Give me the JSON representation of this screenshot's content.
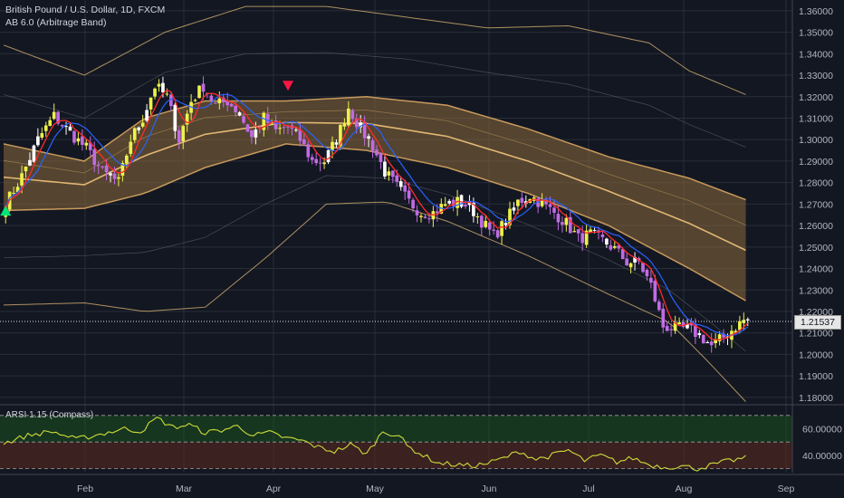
{
  "header": {
    "symbol_line": "British Pound / U.S. Dollar, 1D, FXCM",
    "indicator_line": "AB 6.0 (Arbitrage Band)"
  },
  "oscillator": {
    "title": "ARSI 1.15 (Compass)",
    "levels": [
      "60.00000",
      "40.00000"
    ]
  },
  "last_price_label": "1.21537",
  "colors": {
    "background": "#131722",
    "grid": "#2a2e39",
    "bull": "#eef14a",
    "bear": "#c06be3",
    "neutral": "#ffffff",
    "band_fill": "#8a6a3d",
    "fast_ma": "#ff2b2b",
    "slow_ma": "#2962ff",
    "envelope": "#c9a66b",
    "buy_signal": "#00e676",
    "sell_signal": "#ff1744",
    "osc_line": "#cddc39",
    "osc_upper_zone": "#1b5e20",
    "osc_lower_zone": "#5d2a1f"
  },
  "chart_data": {
    "type": "candlestick",
    "x_ticks": [
      "Feb",
      "Mar",
      "Apr",
      "May",
      "Jun",
      "Jul",
      "Aug",
      "Sep"
    ],
    "y_ticks": [
      "1.36000",
      "1.35000",
      "1.34000",
      "1.33000",
      "1.32000",
      "1.31000",
      "1.30000",
      "1.29000",
      "1.28000",
      "1.27000",
      "1.26000",
      "1.25000",
      "1.24000",
      "1.23000",
      "1.22000",
      "1.21000",
      "1.20000",
      "1.19000",
      "1.18000"
    ],
    "y_range": [
      1.177,
      1.365
    ],
    "last_price": 1.21537,
    "close_path": [
      [
        0,
        1.27
      ],
      [
        4,
        1.283
      ],
      [
        8,
        1.3
      ],
      [
        12,
        1.311
      ],
      [
        16,
        1.303
      ],
      [
        20,
        1.296
      ],
      [
        24,
        1.285
      ],
      [
        28,
        1.28
      ],
      [
        31,
        1.3
      ],
      [
        34,
        1.31
      ],
      [
        37,
        1.325
      ],
      [
        40,
        1.32
      ],
      [
        43,
        1.3
      ],
      [
        46,
        1.318
      ],
      [
        49,
        1.325
      ],
      [
        52,
        1.316
      ],
      [
        55,
        1.318
      ],
      [
        58,
        1.312
      ],
      [
        61,
        1.301
      ],
      [
        64,
        1.31
      ],
      [
        67,
        1.304
      ],
      [
        70,
        1.306
      ],
      [
        73,
        1.3
      ],
      [
        76,
        1.29
      ],
      [
        79,
        1.29
      ],
      [
        82,
        1.3
      ],
      [
        85,
        1.315
      ],
      [
        88,
        1.305
      ],
      [
        91,
        1.297
      ],
      [
        94,
        1.285
      ],
      [
        97,
        1.278
      ],
      [
        100,
        1.271
      ],
      [
        103,
        1.266
      ],
      [
        106,
        1.266
      ],
      [
        109,
        1.27
      ],
      [
        112,
        1.271
      ],
      [
        115,
        1.269
      ],
      [
        118,
        1.262
      ],
      [
        121,
        1.255
      ],
      [
        124,
        1.262
      ],
      [
        127,
        1.271
      ],
      [
        130,
        1.274
      ],
      [
        133,
        1.27
      ],
      [
        136,
        1.266
      ],
      [
        139,
        1.261
      ],
      [
        142,
        1.254
      ],
      [
        145,
        1.256
      ],
      [
        148,
        1.253
      ],
      [
        151,
        1.249
      ],
      [
        154,
        1.243
      ],
      [
        157,
        1.243
      ],
      [
        160,
        1.232
      ],
      [
        163,
        1.213
      ],
      [
        166,
        1.212
      ],
      [
        169,
        1.212
      ],
      [
        172,
        1.209
      ],
      [
        175,
        1.204
      ],
      [
        178,
        1.208
      ],
      [
        181,
        1.213
      ],
      [
        183,
        1.216
      ]
    ],
    "band_upper": [
      [
        0,
        1.298
      ],
      [
        20,
        1.29
      ],
      [
        35,
        1.31
      ],
      [
        50,
        1.318
      ],
      [
        70,
        1.318
      ],
      [
        90,
        1.32
      ],
      [
        110,
        1.316
      ],
      [
        130,
        1.305
      ],
      [
        150,
        1.292
      ],
      [
        170,
        1.282
      ],
      [
        184,
        1.272
      ]
    ],
    "band_lower": [
      [
        0,
        1.267
      ],
      [
        20,
        1.268
      ],
      [
        35,
        1.275
      ],
      [
        50,
        1.287
      ],
      [
        70,
        1.298
      ],
      [
        90,
        1.295
      ],
      [
        110,
        1.287
      ],
      [
        130,
        1.275
      ],
      [
        150,
        1.26
      ],
      [
        170,
        1.24
      ],
      [
        184,
        1.225
      ]
    ],
    "envelope_upper": [
      [
        0,
        1.344
      ],
      [
        20,
        1.33
      ],
      [
        40,
        1.35
      ],
      [
        60,
        1.362
      ],
      [
        80,
        1.362
      ],
      [
        100,
        1.357
      ],
      [
        120,
        1.352
      ],
      [
        140,
        1.353
      ],
      [
        160,
        1.345
      ],
      [
        170,
        1.332
      ],
      [
        184,
        1.321
      ]
    ],
    "envelope_lower": [
      [
        0,
        1.223
      ],
      [
        20,
        1.224
      ],
      [
        35,
        1.22
      ],
      [
        50,
        1.222
      ],
      [
        65,
        1.245
      ],
      [
        80,
        1.27
      ],
      [
        95,
        1.271
      ],
      [
        110,
        1.262
      ],
      [
        130,
        1.246
      ],
      [
        150,
        1.228
      ],
      [
        165,
        1.215
      ],
      [
        175,
        1.196
      ],
      [
        184,
        1.178
      ]
    ],
    "signals": [
      {
        "type": "buy",
        "bar": 0,
        "price": 1.268
      },
      {
        "type": "sell",
        "bar": 70,
        "price": 1.324
      }
    ],
    "oscillator": {
      "y_range": [
        27,
        76
      ],
      "levels": [
        70,
        50,
        30
      ],
      "values": [
        [
          0,
          49
        ],
        [
          6,
          55
        ],
        [
          12,
          58
        ],
        [
          18,
          52
        ],
        [
          24,
          56
        ],
        [
          30,
          60
        ],
        [
          34,
          58
        ],
        [
          38,
          68
        ],
        [
          42,
          61
        ],
        [
          46,
          63
        ],
        [
          50,
          57
        ],
        [
          54,
          59
        ],
        [
          58,
          62
        ],
        [
          62,
          55
        ],
        [
          66,
          57
        ],
        [
          70,
          53
        ],
        [
          74,
          51
        ],
        [
          78,
          46
        ],
        [
          82,
          43
        ],
        [
          86,
          48
        ],
        [
          90,
          41
        ],
        [
          94,
          58
        ],
        [
          98,
          55
        ],
        [
          100,
          47
        ],
        [
          104,
          40
        ],
        [
          108,
          34
        ],
        [
          112,
          33
        ],
        [
          116,
          32
        ],
        [
          120,
          34
        ],
        [
          124,
          38
        ],
        [
          128,
          43
        ],
        [
          132,
          37
        ],
        [
          136,
          40
        ],
        [
          140,
          44
        ],
        [
          144,
          36
        ],
        [
          148,
          40
        ],
        [
          152,
          35
        ],
        [
          156,
          38
        ],
        [
          160,
          33
        ],
        [
          164,
          31
        ],
        [
          168,
          32
        ],
        [
          172,
          30
        ],
        [
          176,
          33
        ],
        [
          180,
          36
        ],
        [
          184,
          38
        ]
      ]
    }
  }
}
